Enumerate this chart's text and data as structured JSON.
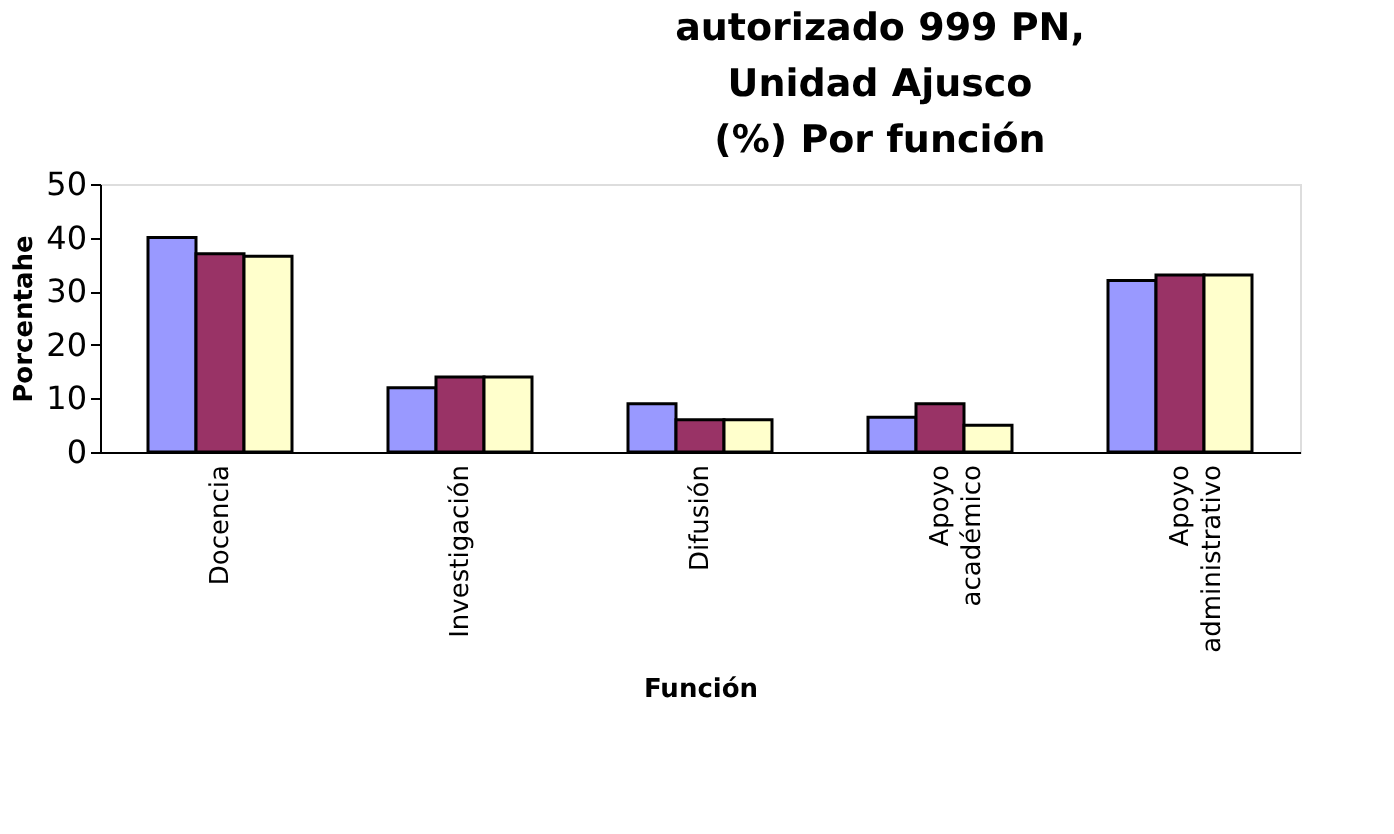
{
  "chart_data": {
    "type": "bar",
    "title": [
      "autorizado 999 PN,",
      "Unidad Ajusco",
      "(%) Por función"
    ],
    "xlabel": "Función",
    "ylabel": "Porcentahe",
    "categories": [
      "Docencia",
      "Investigación",
      "Difusión",
      "Apoyo académico",
      "Apoyo administrativo"
    ],
    "series": [
      {
        "color": "#9999ff",
        "values": [
          40,
          12,
          9,
          6.5,
          32
        ]
      },
      {
        "color": "#993366",
        "values": [
          37,
          14,
          6,
          9,
          33
        ]
      },
      {
        "color": "#ffffcc",
        "values": [
          36.5,
          14,
          6,
          5,
          33
        ]
      }
    ],
    "ylim": [
      0,
      50
    ],
    "yticks": [
      0,
      10,
      20,
      30,
      40,
      50
    ],
    "grid": false
  }
}
